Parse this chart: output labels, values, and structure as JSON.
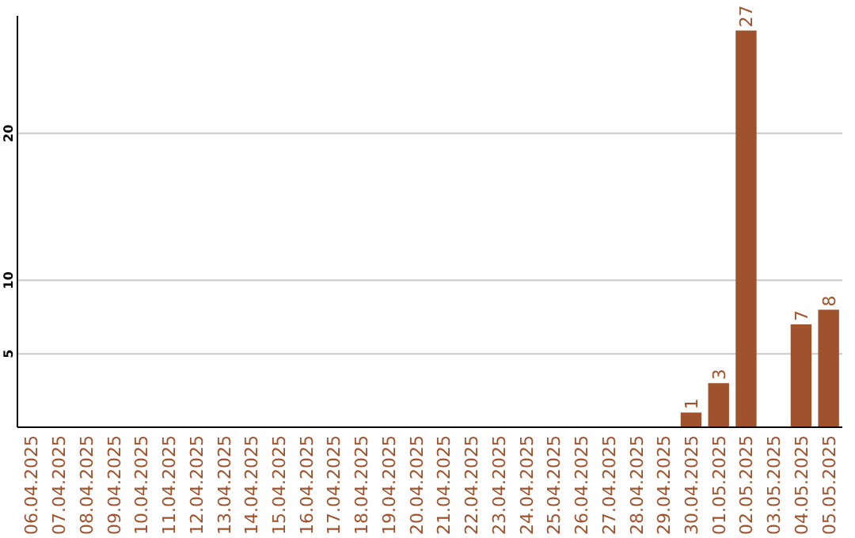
{
  "chart_data": {
    "type": "bar",
    "categories": [
      "06.04.2025",
      "07.04.2025",
      "08.04.2025",
      "09.04.2025",
      "10.04.2025",
      "11.04.2025",
      "12.04.2025",
      "13.04.2025",
      "14.04.2025",
      "15.04.2025",
      "16.04.2025",
      "17.04.2025",
      "18.04.2025",
      "19.04.2025",
      "20.04.2025",
      "21.04.2025",
      "22.04.2025",
      "23.04.2025",
      "24.04.2025",
      "25.04.2025",
      "26.04.2025",
      "27.04.2025",
      "28.04.2025",
      "29.04.2025",
      "30.04.2025",
      "01.05.2025",
      "02.05.2025",
      "03.05.2025",
      "04.05.2025",
      "05.05.2025"
    ],
    "values": [
      0,
      0,
      0,
      0,
      0,
      0,
      0,
      0,
      0,
      0,
      0,
      0,
      0,
      0,
      0,
      0,
      0,
      0,
      0,
      0,
      0,
      0,
      0,
      0,
      1,
      3,
      27,
      0,
      7,
      8
    ],
    "value_labels": [
      null,
      null,
      null,
      null,
      null,
      null,
      null,
      null,
      null,
      null,
      null,
      null,
      null,
      null,
      null,
      null,
      null,
      null,
      null,
      null,
      null,
      null,
      null,
      null,
      "1",
      "3",
      "27",
      null,
      "7",
      "8"
    ],
    "color": "#a0522d",
    "ylim": [
      0,
      28
    ],
    "yticks": [
      5,
      10,
      20
    ],
    "grid": "y"
  }
}
